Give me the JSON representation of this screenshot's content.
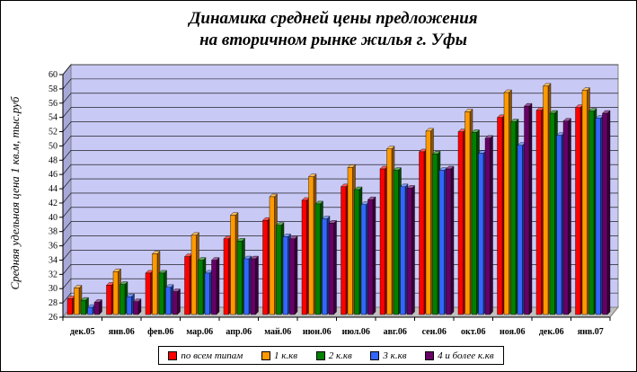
{
  "chart_data": {
    "type": "bar",
    "title_line1": "Динамика средней цены предложения",
    "title_line2": "на вторичном рынке жилья г. Уфы",
    "ylabel": "Средняя удельная цена 1 кв.м, тыс.руб",
    "xlabel": "",
    "ylim": [
      26,
      60
    ],
    "ytick_step": 2,
    "grid": true,
    "legend_position": "bottom",
    "plot_background": "#c9c9f5",
    "categories": [
      "дек.05",
      "янв.06",
      "фев.06",
      "мар.06",
      "апр.06",
      "май.06",
      "июн.06",
      "июл.06",
      "авг.06",
      "сен.06",
      "окт.06",
      "ноя.06",
      "дек.06",
      "янв.07"
    ],
    "series": [
      {
        "name": "по всем типам",
        "color": "#ff0000",
        "values": [
          28.2,
          30.1,
          31.8,
          34.1,
          36.6,
          39.2,
          42.0,
          43.9,
          46.4,
          48.8,
          51.6,
          53.6,
          54.6,
          55.0
        ]
      },
      {
        "name": "1 к.кв",
        "color": "#ff9900",
        "values": [
          29.7,
          32.0,
          34.5,
          37.1,
          39.9,
          42.5,
          45.3,
          46.6,
          49.2,
          51.7,
          54.4,
          57.1,
          58.0,
          57.4
        ]
      },
      {
        "name": "2 к.кв",
        "color": "#008000",
        "values": [
          28.0,
          30.2,
          31.8,
          33.6,
          36.3,
          38.5,
          41.5,
          43.5,
          46.2,
          48.5,
          51.5,
          53.0,
          54.2,
          54.5
        ]
      },
      {
        "name": "3 к.кв",
        "color": "#3366ff",
        "values": [
          27.0,
          28.5,
          29.8,
          31.8,
          33.8,
          36.9,
          39.4,
          41.4,
          43.9,
          46.2,
          48.6,
          49.7,
          51.1,
          53.5
        ]
      },
      {
        "name": "4 и более к.кв",
        "color": "#660066",
        "values": [
          27.7,
          27.8,
          29.2,
          33.6,
          33.8,
          36.6,
          38.8,
          42.1,
          43.7,
          46.4,
          50.7,
          55.2,
          53.1,
          54.2
        ]
      }
    ]
  }
}
